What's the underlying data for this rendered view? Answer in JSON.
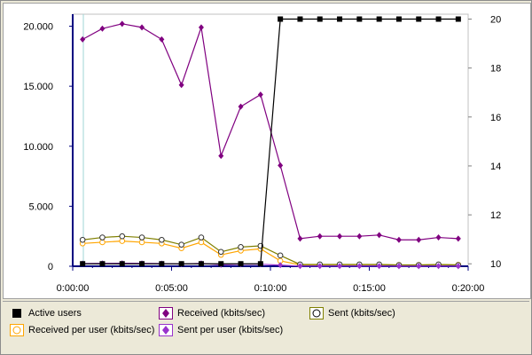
{
  "chart_data": {
    "type": "line",
    "x_ticks": [
      "0:00:00",
      "0:05:00",
      "0:10:00",
      "0:15:00",
      "0:20:00"
    ],
    "x_tick_minutes": [
      0,
      5,
      10,
      15,
      20
    ],
    "xlim": [
      0,
      20
    ],
    "y_left": {
      "ticks": [
        "20.000",
        "15.000",
        "10.000",
        "5.000",
        "0"
      ],
      "tick_values": [
        20000,
        15000,
        10000,
        5000,
        0
      ],
      "range": [
        0,
        21000
      ]
    },
    "y_right": {
      "ticks": [
        "20",
        "18",
        "16",
        "14",
        "12",
        "10"
      ],
      "tick_values": [
        20,
        18,
        16,
        14,
        12,
        10
      ],
      "range": [
        9.9,
        20.2
      ]
    },
    "x_minutes": [
      0.5,
      1.5,
      2.5,
      3.5,
      4.5,
      5.5,
      6.5,
      7.5,
      8.5,
      9.5,
      10.5,
      11.5,
      12.5,
      13.5,
      14.5,
      15.5,
      16.5,
      17.5,
      18.5,
      19.5
    ],
    "series": [
      {
        "name": "Active users",
        "axis": "right",
        "color": "#000000",
        "marker": "square",
        "values": [
          10,
          10,
          10,
          10,
          10,
          10,
          10,
          10,
          10,
          10,
          20,
          20,
          20,
          20,
          20,
          20,
          20,
          20,
          20,
          20
        ]
      },
      {
        "name": "Received (kbits/sec)",
        "axis": "left",
        "color": "#800080",
        "marker": "diamond",
        "values": [
          18900,
          19800,
          20200,
          19900,
          18900,
          15100,
          19900,
          9200,
          13300,
          14300,
          8400,
          2300,
          2500,
          2500,
          2500,
          2600,
          2200,
          2200,
          2400,
          2300
        ]
      },
      {
        "name": "Sent (kbits/sec)",
        "axis": "left",
        "color": "#808000",
        "marker": "circle",
        "values": [
          2200,
          2400,
          2500,
          2400,
          2200,
          1800,
          2400,
          1200,
          1600,
          1700,
          900,
          150,
          150,
          150,
          150,
          150,
          100,
          100,
          150,
          100
        ]
      },
      {
        "name": "Received per user (kbits/sec)",
        "axis": "left",
        "color": "#ffa500",
        "marker": "circle",
        "values": [
          1900,
          2000,
          2100,
          2000,
          1900,
          1500,
          2000,
          950,
          1300,
          1450,
          450,
          120,
          130,
          130,
          130,
          130,
          110,
          110,
          130,
          120
        ]
      },
      {
        "name": "Sent per user (kbits/sec)",
        "axis": "left",
        "color": "#9933cc",
        "marker": "diamond",
        "values": [
          220,
          240,
          250,
          240,
          220,
          180,
          240,
          120,
          160,
          170,
          90,
          15,
          15,
          15,
          15,
          15,
          10,
          10,
          15,
          10
        ]
      }
    ]
  },
  "legend": [
    {
      "label": "Active users",
      "icon": "square-black-icon"
    },
    {
      "label": "Received (kbits/sec)",
      "icon": "diamond-purple-icon"
    },
    {
      "label": "Sent (kbits/sec)",
      "icon": "circle-olive-icon"
    },
    {
      "label": "Received per user (kbits/sec)",
      "icon": "circle-orange-icon"
    },
    {
      "label": "Sent per user (kbits/sec)",
      "icon": "diamond-violet-icon"
    }
  ]
}
